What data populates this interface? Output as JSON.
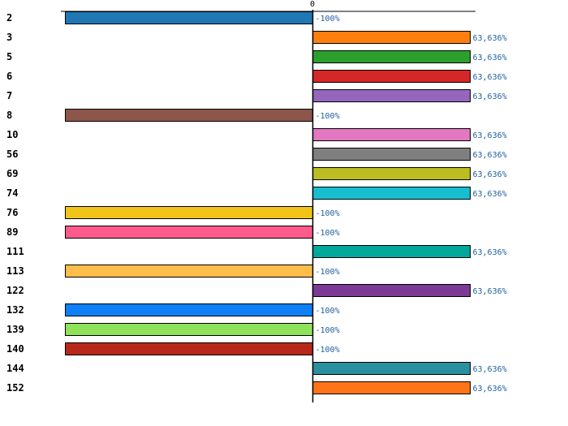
{
  "chart_data": {
    "type": "bar",
    "orientation": "horizontal",
    "categories": [
      "2",
      "3",
      "5",
      "6",
      "7",
      "8",
      "10",
      "56",
      "69",
      "74",
      "76",
      "89",
      "111",
      "113",
      "122",
      "132",
      "139",
      "140",
      "144",
      "152"
    ],
    "values": [
      -100,
      63.636,
      63.636,
      63.636,
      63.636,
      -100,
      63.636,
      63.636,
      63.636,
      63.636,
      -100,
      -100,
      63.636,
      -100,
      63.636,
      -100,
      -100,
      -100,
      63.636,
      63.636
    ],
    "value_labels": [
      "-100%",
      "63,636%",
      "63,636%",
      "63,636%",
      "63,636%",
      "-100%",
      "63,636%",
      "63,636%",
      "63,636%",
      "63,636%",
      "-100%",
      "-100%",
      "63,636%",
      "-100%",
      "63,636%",
      "-100%",
      "-100%",
      "-100%",
      "63,636%",
      "63,636%"
    ],
    "colors": [
      "#1f77b4",
      "#ff7f0e",
      "#2ca02c",
      "#d62728",
      "#9467bd",
      "#8c564b",
      "#e377c2",
      "#7f7f7f",
      "#bcbd22",
      "#17becf",
      "#f0c419",
      "#ff5a8c",
      "#00a89c",
      "#ffbe4a",
      "#7b3a96",
      "#0f7ff5",
      "#8fe35a",
      "#b8281a",
      "#2a8f9e",
      "#ff7417"
    ],
    "xlim": [
      -100,
      63.636
    ],
    "zero_tick_label": "0",
    "title": "",
    "xlabel": "",
    "ylabel": ""
  }
}
